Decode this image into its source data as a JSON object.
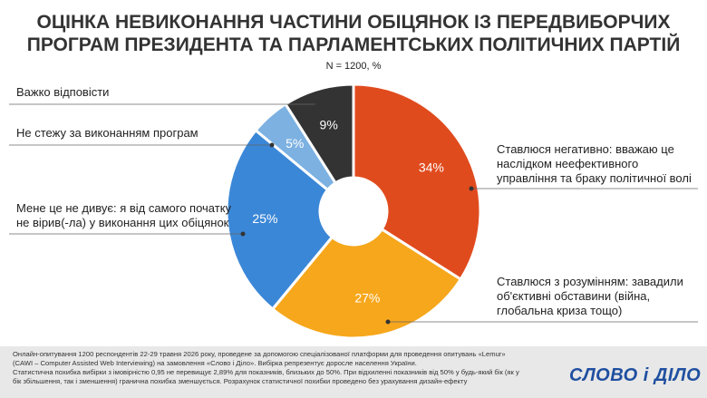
{
  "chart_data": {
    "type": "pie",
    "title": "ОЦІНКА НЕВИКОНАННЯ ЧАСТИНИ ОБІЦЯНОК ІЗ ПЕРЕДВИБОРЧИХ ПРОГРАМ ПРЕЗИДЕНТА ТА ПАРЛАМЕНТСЬКИХ ПОЛІТИЧНИХ ПАРТІЙ",
    "subtitle": "N = 1200, %",
    "categories": [
      "Ставлюся негативно: вважаю це наслідком неефективного управління та браку політичної волі",
      "Ставлюся з розумінням: завадили об'єктивні обставини (війна, глобальна криза тощо)",
      "Мене це не дивує: я від самого початку не вірив(-ла) у виконання цих обіцянок",
      "Не стежу за виконанням програм",
      "Важко відповісти"
    ],
    "values": [
      34,
      27,
      25,
      5,
      9
    ],
    "value_labels": [
      "34%",
      "27%",
      "25%",
      "5%",
      "9%"
    ],
    "colors": [
      "#e04b1e",
      "#f6a71c",
      "#3b87d7",
      "#7cb1e2",
      "#333333"
    ],
    "donut": true,
    "footnote": [
      "Онлайн-опитування 1200 респондентів 22-29 травня 2026 року, проведене за допомогою спеціалізованої платформи для проведення опитувань «Lemur» (CAWI – Computer Assisted Web Interviewing) на замовлення «Слово і Діло». Вибірка репрезентує доросле населення України.",
      "Статистична похибка вибірки з імовірністю 0,95 не перевищує 2,89% для показників, близьких до 50%. При відхиленні показників від 50% у будь-який бік (як у бік збільшення, так і зменшення) гранична похибка зменшується. Розрахунок статистичної похибки проведено без урахування дизайн-ефекту"
    ],
    "logo": "СЛОВО і ДІЛО"
  }
}
